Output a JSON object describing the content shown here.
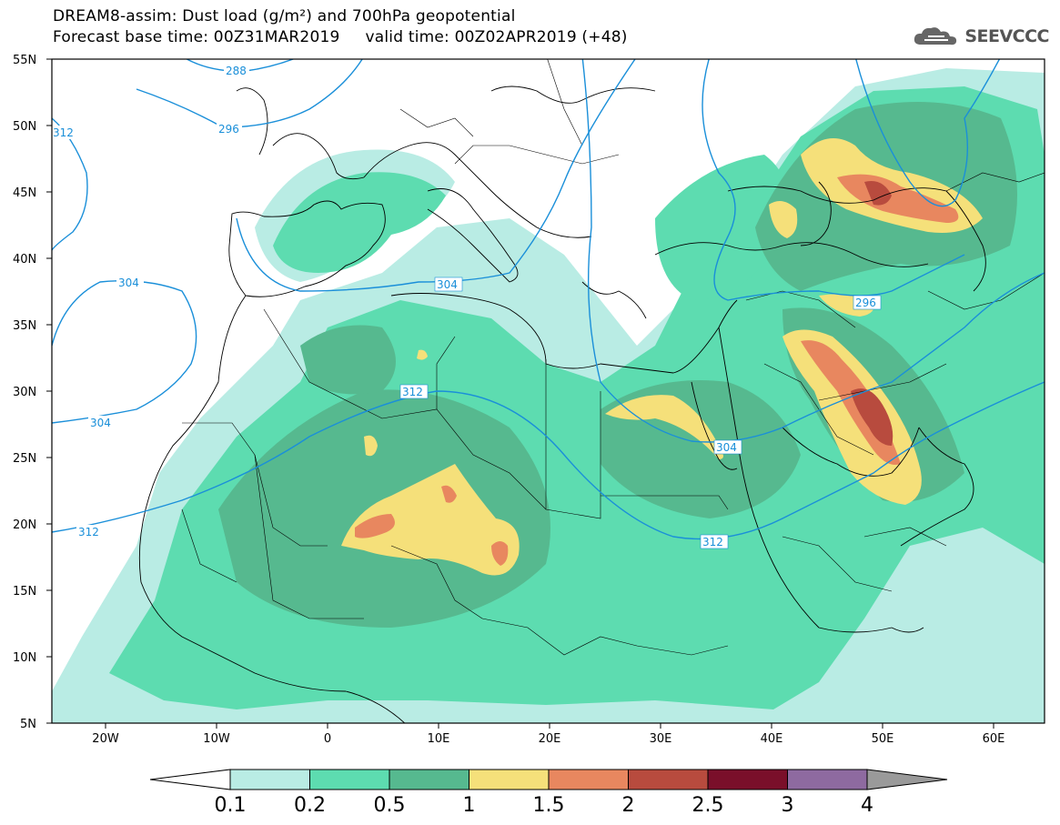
{
  "header": {
    "title_line1": "DREAM8-assim: Dust load (g/m²) and 700hPa geopotential",
    "title_line2": "Forecast base time: 00Z31MAR2019     valid time: 00Z02APR2019 (+48)",
    "logo_text": "SEEVCCC"
  },
  "axes": {
    "lat_labels": [
      "55N",
      "50N",
      "45N",
      "40N",
      "35N",
      "30N",
      "25N",
      "20N",
      "15N",
      "10N",
      "5N"
    ],
    "lon_labels": [
      "20W",
      "10W",
      "0",
      "10E",
      "20E",
      "30E",
      "40E",
      "50E",
      "60E"
    ]
  },
  "contours": {
    "labels": [
      "288",
      "296",
      "312",
      "304",
      "304",
      "312",
      "312",
      "304",
      "296",
      "312"
    ]
  },
  "colorbar": {
    "ticks": [
      "0.1",
      "0.2",
      "0.5",
      "1",
      "1.5",
      "2",
      "2.5",
      "3",
      "4"
    ],
    "colors": [
      "#b9ece4",
      "#5ddcb0",
      "#56b98f",
      "#f5e07a",
      "#e8875f",
      "#b84b3e",
      "#7a0f2a",
      "#8e6aa0",
      "#9a9a9a"
    ]
  },
  "colors": {
    "contour_line": "#1a8fd9",
    "dust_light": "#b9ece4",
    "dust_medium": "#5ddcb0",
    "dust_dark": "#56b98f",
    "dust_yellow": "#f5e07a",
    "dust_orange": "#e8875f",
    "dust_red": "#b84b3e"
  }
}
